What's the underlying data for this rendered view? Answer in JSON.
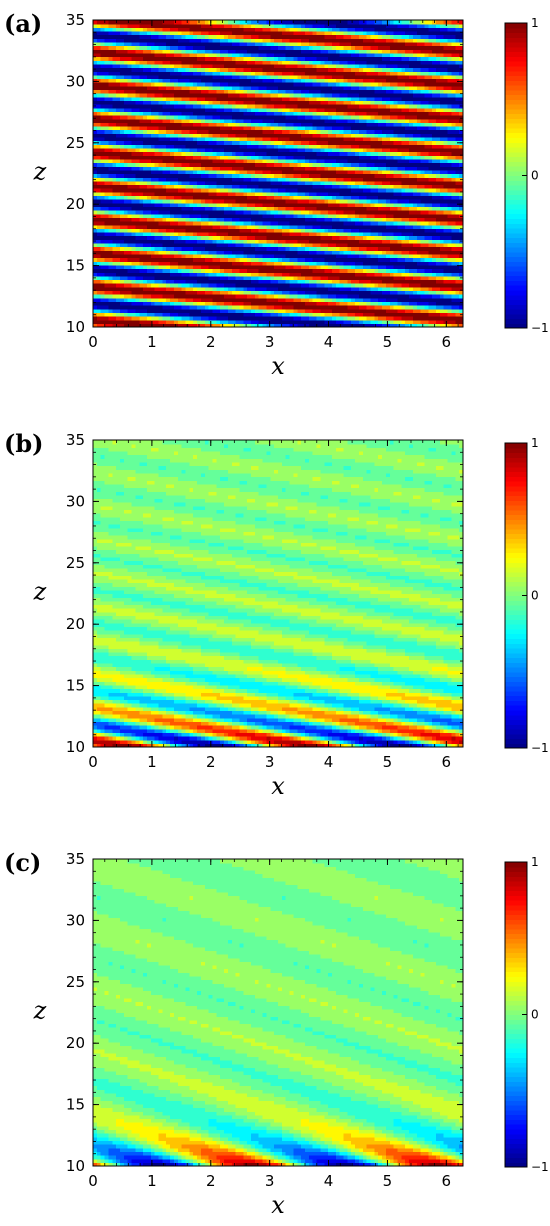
{
  "chart_data": [
    {
      "type": "heatmap",
      "panel_label": "(a)",
      "xlabel": "x",
      "ylabel": "z",
      "xlim": [
        0,
        6.2832
      ],
      "ylim": [
        10,
        35
      ],
      "xticks": [
        0,
        1,
        2,
        3,
        4,
        5,
        6
      ],
      "yticks": [
        10,
        15,
        20,
        25,
        30,
        35
      ],
      "colorbar": {
        "min": -1,
        "max": 1,
        "ticks": [
          -1,
          0,
          1
        ],
        "colormap": "jet"
      },
      "field": {
        "form": "A(z)*cos(kx*x + kz*z + phase)",
        "kx": 1,
        "kz": 2.3,
        "phase": 0.8,
        "amplitude": "constant 1 for all z"
      }
    },
    {
      "type": "heatmap",
      "panel_label": "(b)",
      "xlabel": "x",
      "ylabel": "z",
      "xlim": [
        0,
        6.2832
      ],
      "ylim": [
        10,
        35
      ],
      "xticks": [
        0,
        1,
        2,
        3,
        4,
        5,
        6
      ],
      "yticks": [
        10,
        15,
        20,
        25,
        30,
        35
      ],
      "colorbar": {
        "min": -1,
        "max": 1,
        "ticks": [
          -1,
          0,
          1
        ],
        "colormap": "jet"
      },
      "field": {
        "form": "A(z)*cos(kx*x + kz*z + phase)",
        "kx": 2,
        "kz": 2.3,
        "phase": 0.8,
        "amplitude": "decays from 1 at z=10 to about 0.1 near z=21 and above"
      }
    },
    {
      "type": "heatmap",
      "panel_label": "(c)",
      "xlabel": "x",
      "ylabel": "z",
      "xlim": [
        0,
        6.2832
      ],
      "ylim": [
        10,
        35
      ],
      "xticks": [
        0,
        1,
        2,
        3,
        4,
        5,
        6
      ],
      "yticks": [
        10,
        15,
        20,
        25,
        30,
        35
      ],
      "colorbar": {
        "min": -1,
        "max": 1,
        "ticks": [
          -1,
          0,
          1
        ],
        "colormap": "jet"
      },
      "field": {
        "form": "A(z)*cos(kx*x + kz*z + phase)",
        "kx": 2,
        "kz": 1.25,
        "phase": 0.8,
        "amplitude": "decays from 1 at z=10 to about 0.1 near z=15 and above"
      }
    }
  ]
}
